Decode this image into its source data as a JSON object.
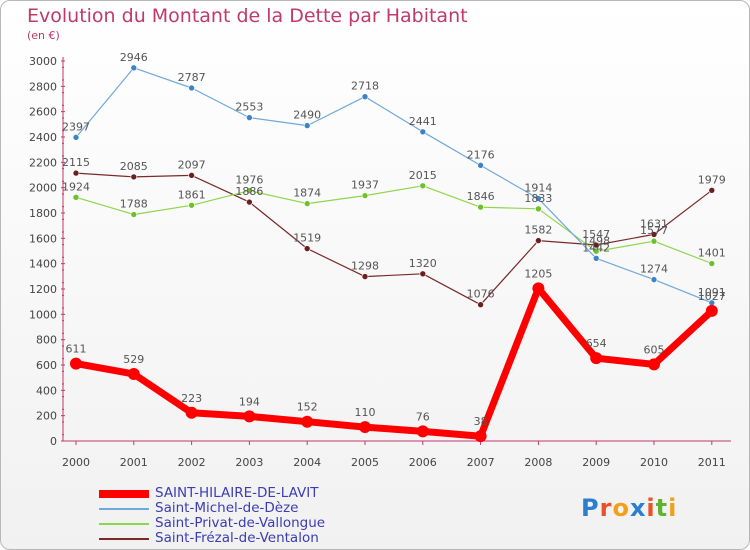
{
  "title": "Evolution du Montant de la Dette par Habitant",
  "subtitle": "(en €)",
  "logo": {
    "text": "Proxiti",
    "colors": [
      "#2a7fd0",
      "#e8512a",
      "#f2a01a",
      "#2a7fd0",
      "#e8512a",
      "#5fb331",
      "#f2a01a"
    ]
  },
  "chart_data": {
    "type": "line",
    "x": [
      "2000",
      "2001",
      "2002",
      "2003",
      "2004",
      "2005",
      "2006",
      "2007",
      "2008",
      "2009",
      "2010",
      "2011"
    ],
    "ylim": [
      0,
      3000
    ],
    "yticks": [
      0,
      200,
      400,
      600,
      800,
      1000,
      1200,
      1400,
      1600,
      1800,
      2000,
      2200,
      2400,
      2600,
      2800,
      3000
    ],
    "grid": false,
    "legend_position": "bottom-left",
    "series": [
      {
        "name": "Saint-Frézal-de-Ventalon",
        "color": "#7a2a2a",
        "dot": "#6b2020",
        "width": 1.2,
        "values": [
          2115,
          2085,
          2097,
          1886,
          1519,
          1298,
          1320,
          1076,
          1582,
          1547,
          1631,
          1979
        ]
      },
      {
        "name": "Saint-Privat-de-Vallongue",
        "color": "#8fd64a",
        "dot": "#6cc22b",
        "width": 1.2,
        "values": [
          1924,
          1788,
          1861,
          1976,
          1874,
          1937,
          2015,
          1846,
          1833,
          1498,
          1577,
          1401
        ]
      },
      {
        "name": "Saint-Michel-de-Dèze",
        "color": "#6fa8dc",
        "dot": "#3c84c6",
        "width": 1.2,
        "values": [
          2397,
          2946,
          2787,
          2553,
          2490,
          2718,
          2441,
          2176,
          1914,
          1442,
          1274,
          1091
        ]
      },
      {
        "name": "SAINT-HILAIRE-DE-LAVIT",
        "color": "#ff0000",
        "dot": "#ff0000",
        "width": 7,
        "values": [
          611,
          529,
          223,
          194,
          152,
          110,
          76,
          38,
          1205,
          654,
          605,
          1027
        ]
      }
    ],
    "legend_order": [
      "SAINT-HILAIRE-DE-LAVIT",
      "Saint-Michel-de-Dèze",
      "Saint-Privat-de-Vallongue",
      "Saint-Frézal-de-Ventalon"
    ]
  }
}
